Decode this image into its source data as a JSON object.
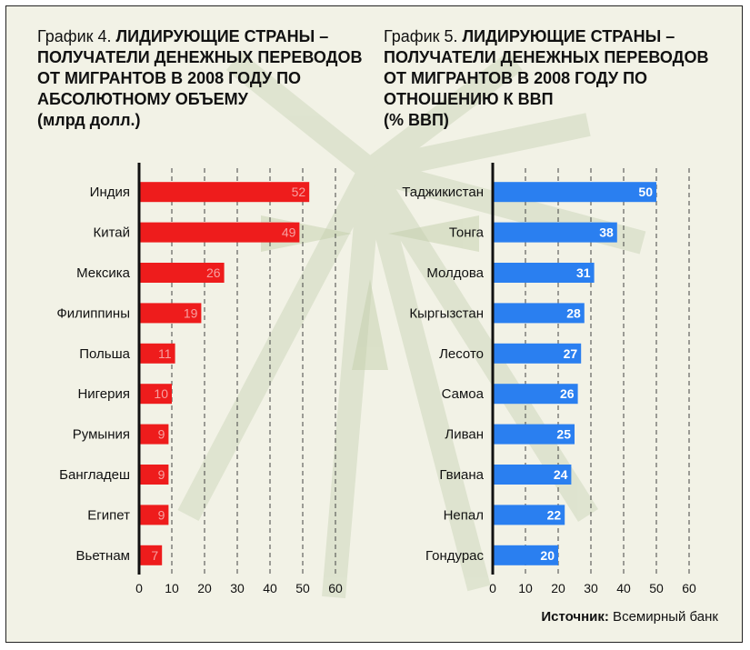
{
  "chart_data": [
    {
      "type": "bar",
      "orientation": "horizontal",
      "title_prefix": "График 4.",
      "title": "ЛИДИРУЮЩИЕ СТРАНЫ – ПОЛУЧАТЕЛИ ДЕНЕЖНЫХ ПЕРЕВОДОВ ОТ МИГРАНТОВ В 2008 ГОДУ ПО АБСОЛЮТНОМУ ОБЪЕМУ",
      "unit": "(млрд долл.)",
      "categories": [
        "Индия",
        "Китай",
        "Мексика",
        "Филиппины",
        "Польша",
        "Нигерия",
        "Румыния",
        "Бангладеш",
        "Египет",
        "Вьетнам"
      ],
      "values": [
        52,
        49,
        26,
        19,
        11,
        10,
        9,
        9,
        9,
        7
      ],
      "xlim": [
        0,
        60
      ],
      "xticks": [
        0,
        10,
        20,
        30,
        40,
        50,
        60
      ],
      "bar_color": "#ee1c1c",
      "label_color": "#f7a0a0",
      "grid": "dashed-vertical"
    },
    {
      "type": "bar",
      "orientation": "horizontal",
      "title_prefix": "График 5.",
      "title": "ЛИДИРУЮЩИЕ СТРАНЫ – ПОЛУЧАТЕЛИ ДЕНЕЖНЫХ ПЕРЕВОДОВ ОТ МИГРАНТОВ В 2008 ГОДУ ПО ОТНОШЕНИЮ К ВВП",
      "unit": "(% ВВП)",
      "categories": [
        "Таджикистан",
        "Тонга",
        "Молдова",
        "Кыргызстан",
        "Лесото",
        "Самоа",
        "Ливан",
        "Гвиана",
        "Непал",
        "Гондурас"
      ],
      "values": [
        50,
        38,
        31,
        28,
        27,
        26,
        25,
        24,
        22,
        20
      ],
      "xlim": [
        0,
        60
      ],
      "xticks": [
        0,
        10,
        20,
        30,
        40,
        50,
        60
      ],
      "bar_color": "#2a7ff0",
      "label_color": "#ffffff",
      "grid": "dashed-vertical"
    }
  ],
  "source": {
    "label": "Источник:",
    "text": " Всемирный банк"
  },
  "colors": {
    "background": "#f2f2e6",
    "watermark": "#c9d4b3",
    "axis": "#111111"
  }
}
